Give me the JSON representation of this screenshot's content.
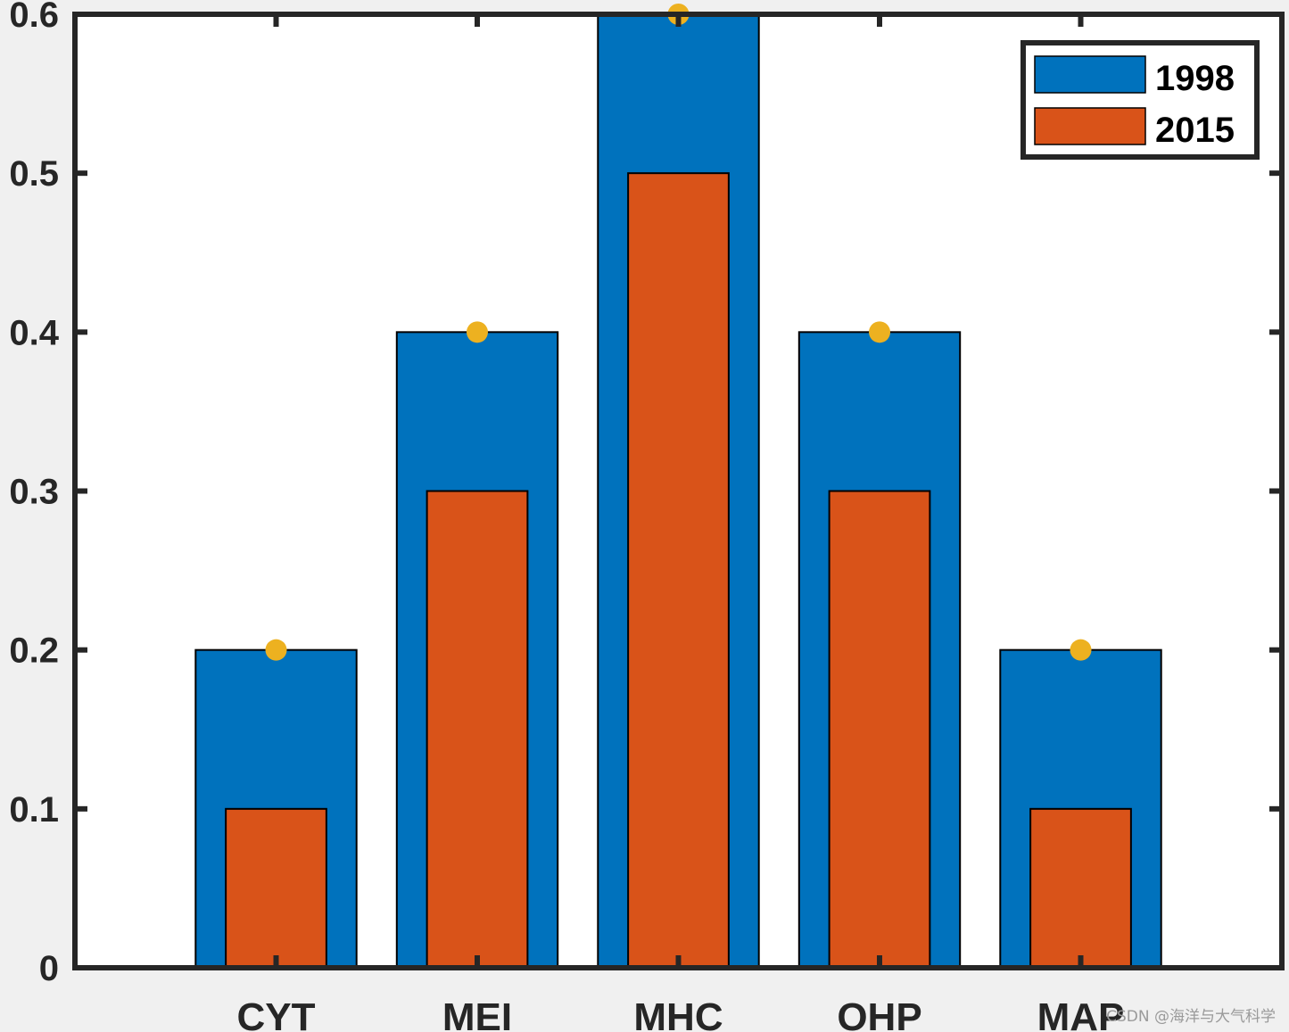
{
  "chart_data": {
    "type": "bar",
    "title": "",
    "xlabel": "",
    "ylabel": "",
    "categories": [
      "CYT",
      "MEI",
      "MHC",
      "OHP",
      "MAP"
    ],
    "series": [
      {
        "name": "1998",
        "values": [
          0.2,
          0.4,
          0.6,
          0.4,
          0.2
        ],
        "color": "#0072bd"
      },
      {
        "name": "2015",
        "values": [
          0.1,
          0.3,
          0.5,
          0.3,
          0.1
        ],
        "color": "#d95319"
      }
    ],
    "markers": {
      "values": [
        0.2,
        0.4,
        0.6,
        0.4,
        0.2
      ],
      "color": "#edb120"
    },
    "ylim": [
      0,
      0.6
    ],
    "xlim": [
      0,
      6
    ],
    "yticks": [
      "0",
      "0.1",
      "0.2",
      "0.3",
      "0.4",
      "0.5",
      "0.6"
    ],
    "grid": false,
    "legend_position": "top-right",
    "overlaid_bars": true
  },
  "watermark": "CSDN @海洋与大气科学"
}
